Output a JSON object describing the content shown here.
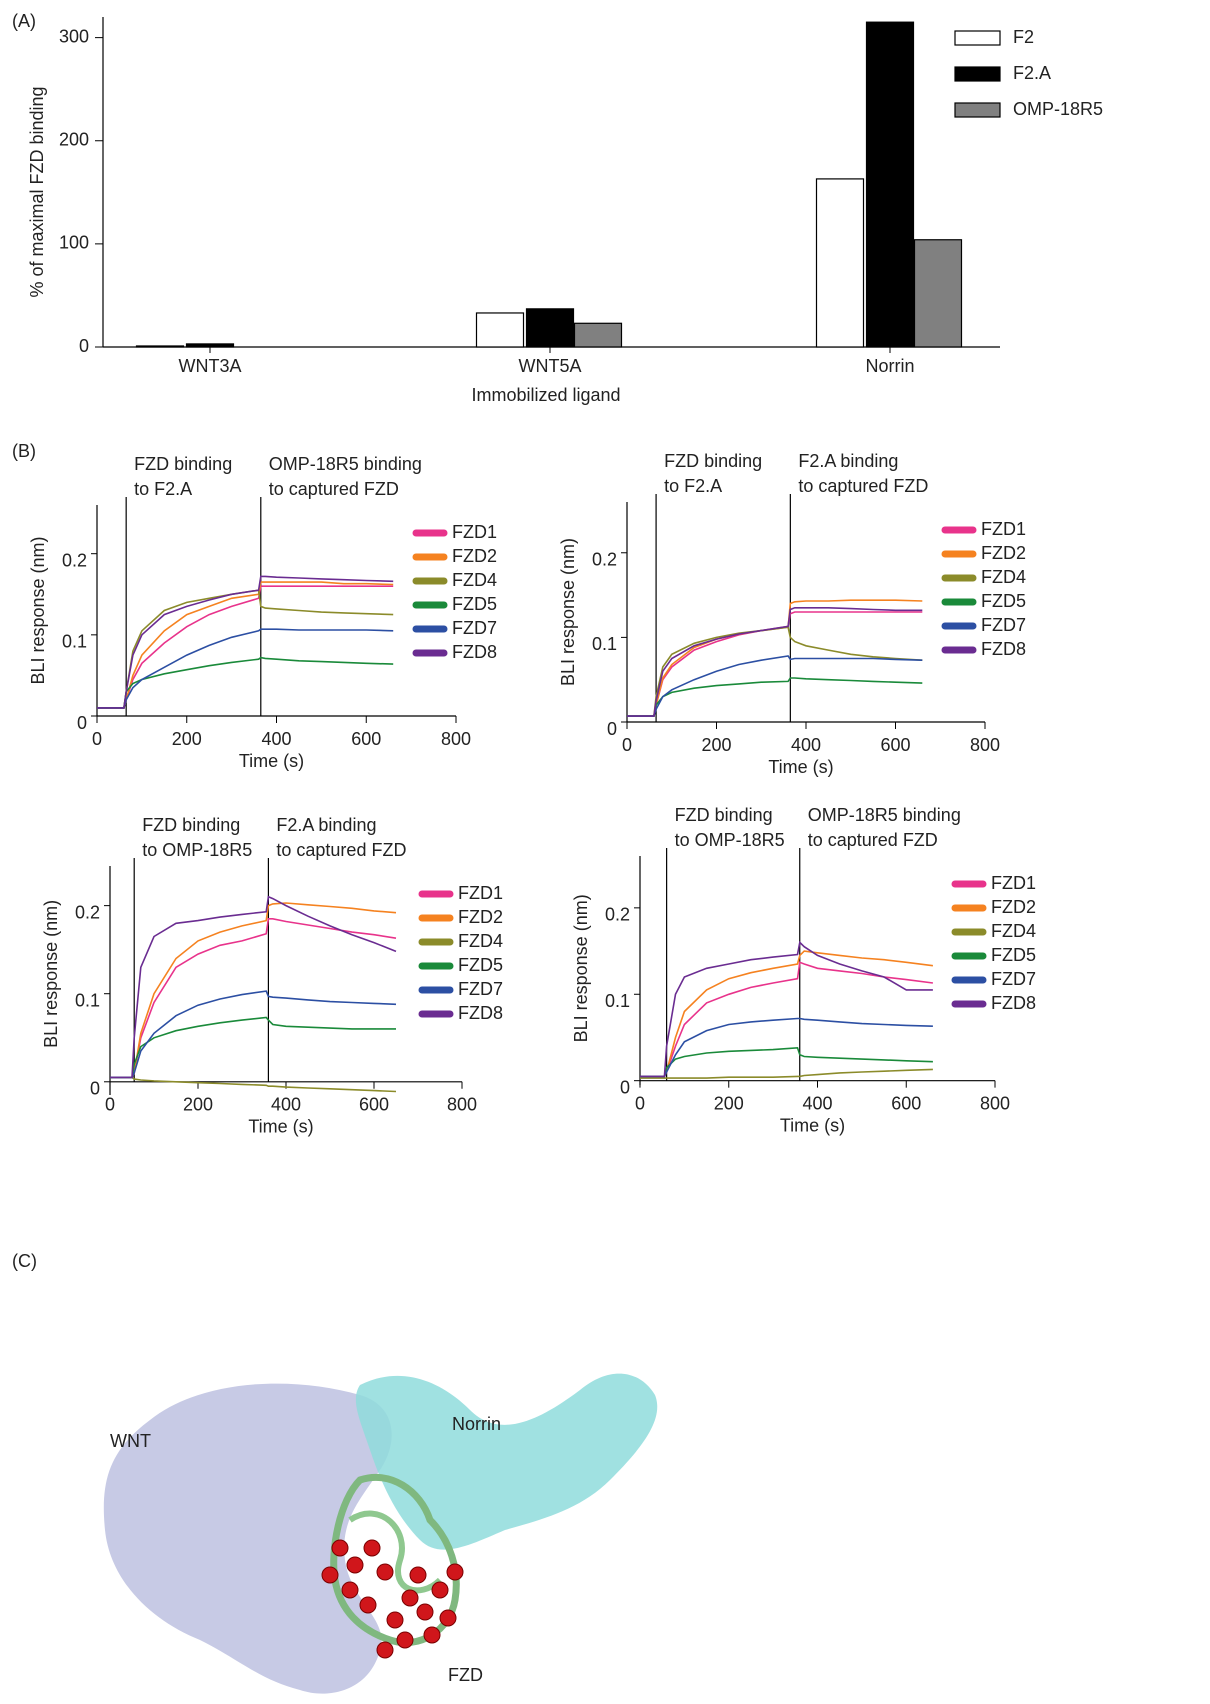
{
  "panels": [
    "(A)",
    "(B)",
    "(C)"
  ],
  "structure_labels": {
    "wnt": "WNT",
    "norrin": "Norrin",
    "fzd": "FZD"
  },
  "chart_data": [
    {
      "type": "bar",
      "xlabel": "Immobilized ligand",
      "ylabel": "% of maximal FZD binding",
      "categories": [
        "WNT3A",
        "WNT5A",
        "Norrin"
      ],
      "series": [
        {
          "name": "F2",
          "color": "#ffffff",
          "values": [
            1,
            33,
            163
          ]
        },
        {
          "name": "F2.A",
          "color": "#000000",
          "values": [
            3,
            37,
            315
          ]
        },
        {
          "name": "OMP-18R5",
          "color": "#808080",
          "values": [
            0,
            23,
            104
          ]
        }
      ],
      "ylim": [
        0,
        320
      ],
      "yticks": [
        0,
        100,
        200,
        300
      ]
    },
    {
      "type": "line",
      "xlabel": "Time (s)",
      "ylabel": "BLI response (nm)",
      "annotations": [
        {
          "x": 65,
          "lines": [
            "FZD binding",
            "to F2.A"
          ]
        },
        {
          "x": 365,
          "lines": [
            "OMP-18R5 binding",
            "to captured FZD"
          ]
        }
      ],
      "x": [
        0,
        60,
        65,
        80,
        100,
        150,
        200,
        250,
        300,
        360,
        365,
        375,
        400,
        450,
        500,
        550,
        600,
        660
      ],
      "series": [
        {
          "name": "FZD1",
          "color": "#e8338b",
          "values": [
            0.01,
            0.01,
            0.02,
            0.045,
            0.065,
            0.09,
            0.11,
            0.125,
            0.135,
            0.145,
            0.16,
            0.16,
            0.16,
            0.16,
            0.16,
            0.16,
            0.16,
            0.16
          ]
        },
        {
          "name": "FZD2",
          "color": "#f58220",
          "values": [
            0.01,
            0.01,
            0.02,
            0.05,
            0.075,
            0.105,
            0.125,
            0.135,
            0.145,
            0.15,
            0.165,
            0.165,
            0.165,
            0.165,
            0.165,
            0.163,
            0.163,
            0.162
          ]
        },
        {
          "name": "FZD4",
          "color": "#8b8b2a",
          "values": [
            0.01,
            0.01,
            0.03,
            0.08,
            0.105,
            0.13,
            0.14,
            0.145,
            0.15,
            0.155,
            0.135,
            0.133,
            0.132,
            0.13,
            0.128,
            0.127,
            0.126,
            0.125
          ]
        },
        {
          "name": "FZD5",
          "color": "#1a8a3a",
          "values": [
            0.01,
            0.01,
            0.03,
            0.04,
            0.045,
            0.052,
            0.057,
            0.062,
            0.066,
            0.07,
            0.072,
            0.071,
            0.07,
            0.068,
            0.067,
            0.066,
            0.065,
            0.064
          ]
        },
        {
          "name": "FZD7",
          "color": "#2c4fa3",
          "values": [
            0.01,
            0.01,
            0.02,
            0.035,
            0.045,
            0.06,
            0.075,
            0.087,
            0.097,
            0.105,
            0.107,
            0.107,
            0.107,
            0.106,
            0.106,
            0.106,
            0.106,
            0.105
          ]
        },
        {
          "name": "FZD8",
          "color": "#6a2c91",
          "values": [
            0.01,
            0.01,
            0.03,
            0.075,
            0.1,
            0.125,
            0.135,
            0.143,
            0.15,
            0.155,
            0.172,
            0.172,
            0.171,
            0.17,
            0.169,
            0.168,
            0.167,
            0.166
          ]
        }
      ],
      "xlim": [
        0,
        800
      ],
      "xticks": [
        0,
        200,
        400,
        600,
        800
      ],
      "ylim": [
        0,
        0.26
      ],
      "yticks": [
        0,
        0.1,
        0.2
      ]
    },
    {
      "type": "line",
      "xlabel": "Time (s)",
      "ylabel": "BLI response (nm)",
      "annotations": [
        {
          "x": 65,
          "lines": [
            "FZD binding",
            "to F2.A"
          ]
        },
        {
          "x": 365,
          "lines": [
            "F2.A binding",
            "to captured FZD"
          ]
        }
      ],
      "x": [
        0,
        60,
        65,
        80,
        100,
        150,
        200,
        250,
        300,
        360,
        365,
        375,
        400,
        450,
        500,
        550,
        600,
        660
      ],
      "series": [
        {
          "name": "FZD1",
          "color": "#e8338b",
          "values": [
            0.007,
            0.007,
            0.02,
            0.05,
            0.065,
            0.085,
            0.095,
            0.103,
            0.108,
            0.113,
            0.128,
            0.13,
            0.13,
            0.13,
            0.13,
            0.13,
            0.13,
            0.13
          ]
        },
        {
          "name": "FZD2",
          "color": "#f58220",
          "values": [
            0.007,
            0.007,
            0.02,
            0.052,
            0.068,
            0.088,
            0.098,
            0.104,
            0.108,
            0.112,
            0.14,
            0.142,
            0.143,
            0.143,
            0.144,
            0.144,
            0.144,
            0.143
          ]
        },
        {
          "name": "FZD4",
          "color": "#8b8b2a",
          "values": [
            0.007,
            0.007,
            0.03,
            0.065,
            0.08,
            0.093,
            0.1,
            0.105,
            0.108,
            0.112,
            0.1,
            0.095,
            0.09,
            0.085,
            0.08,
            0.077,
            0.075,
            0.073
          ]
        },
        {
          "name": "FZD5",
          "color": "#1a8a3a",
          "values": [
            0.007,
            0.007,
            0.02,
            0.03,
            0.035,
            0.04,
            0.043,
            0.045,
            0.047,
            0.048,
            0.052,
            0.052,
            0.051,
            0.05,
            0.049,
            0.048,
            0.047,
            0.046
          ]
        },
        {
          "name": "FZD7",
          "color": "#2c4fa3",
          "values": [
            0.007,
            0.007,
            0.015,
            0.03,
            0.038,
            0.05,
            0.06,
            0.068,
            0.073,
            0.078,
            0.074,
            0.075,
            0.075,
            0.075,
            0.075,
            0.075,
            0.074,
            0.073
          ]
        },
        {
          "name": "FZD8",
          "color": "#6a2c91",
          "values": [
            0.007,
            0.007,
            0.025,
            0.06,
            0.075,
            0.09,
            0.098,
            0.104,
            0.108,
            0.113,
            0.133,
            0.135,
            0.135,
            0.135,
            0.134,
            0.133,
            0.132,
            0.132
          ]
        }
      ],
      "xlim": [
        0,
        800
      ],
      "xticks": [
        0,
        200,
        400,
        600,
        800
      ],
      "ylim": [
        0,
        0.26
      ],
      "yticks": [
        0,
        0.1,
        0.2
      ]
    },
    {
      "type": "line",
      "xlabel": "Time (s)",
      "ylabel": "BLI response (nm)",
      "annotations": [
        {
          "x": 55,
          "lines": [
            "FZD binding",
            "to OMP-18R5"
          ]
        },
        {
          "x": 360,
          "lines": [
            "F2.A binding",
            "to captured FZD"
          ]
        }
      ],
      "x": [
        0,
        50,
        55,
        70,
        100,
        150,
        200,
        250,
        300,
        355,
        360,
        370,
        400,
        450,
        500,
        550,
        600,
        650
      ],
      "series": [
        {
          "name": "FZD1",
          "color": "#e8338b",
          "values": [
            0.005,
            0.005,
            0.01,
            0.05,
            0.09,
            0.13,
            0.145,
            0.155,
            0.16,
            0.168,
            0.185,
            0.185,
            0.182,
            0.178,
            0.174,
            0.17,
            0.167,
            0.163
          ]
        },
        {
          "name": "FZD2",
          "color": "#f58220",
          "values": [
            0.005,
            0.005,
            0.01,
            0.055,
            0.1,
            0.14,
            0.16,
            0.17,
            0.177,
            0.183,
            0.2,
            0.202,
            0.203,
            0.201,
            0.199,
            0.197,
            0.194,
            0.192
          ]
        },
        {
          "name": "FZD4",
          "color": "#8b8b2a",
          "values": [
            0.005,
            0.005,
            0.003,
            0.002,
            0.001,
            0,
            -0.001,
            -0.002,
            -0.003,
            -0.004,
            -0.005,
            -0.005,
            -0.006,
            -0.007,
            -0.008,
            -0.009,
            -0.01,
            -0.011
          ]
        },
        {
          "name": "FZD5",
          "color": "#1a8a3a",
          "values": [
            0.005,
            0.005,
            0.02,
            0.04,
            0.05,
            0.058,
            0.063,
            0.067,
            0.07,
            0.073,
            0.07,
            0.065,
            0.063,
            0.062,
            0.061,
            0.06,
            0.06,
            0.06
          ]
        },
        {
          "name": "FZD7",
          "color": "#2c4fa3",
          "values": [
            0.005,
            0.005,
            0.01,
            0.035,
            0.055,
            0.075,
            0.087,
            0.094,
            0.099,
            0.103,
            0.097,
            0.096,
            0.095,
            0.093,
            0.091,
            0.09,
            0.089,
            0.088
          ]
        },
        {
          "name": "FZD8",
          "color": "#6a2c91",
          "values": [
            0.005,
            0.005,
            0.05,
            0.13,
            0.165,
            0.18,
            0.183,
            0.187,
            0.19,
            0.193,
            0.21,
            0.208,
            0.2,
            0.188,
            0.177,
            0.167,
            0.158,
            0.148
          ]
        }
      ],
      "xlim": [
        0,
        800
      ],
      "xticks": [
        0,
        200,
        400,
        600,
        800
      ],
      "ylim": [
        -0.015,
        0.245
      ],
      "yticks": [
        0,
        0.1,
        0.2
      ]
    },
    {
      "type": "line",
      "xlabel": "Time (s)",
      "ylabel": "BLI response (nm)",
      "annotations": [
        {
          "x": 60,
          "lines": [
            "FZD binding",
            "to OMP-18R5"
          ]
        },
        {
          "x": 360,
          "lines": [
            "OMP-18R5 binding",
            "to captured FZD"
          ]
        }
      ],
      "x": [
        0,
        55,
        60,
        80,
        100,
        150,
        200,
        250,
        300,
        355,
        360,
        370,
        400,
        450,
        500,
        550,
        600,
        660
      ],
      "series": [
        {
          "name": "FZD1",
          "color": "#e8338b",
          "values": [
            0.005,
            0.005,
            0.01,
            0.04,
            0.065,
            0.09,
            0.1,
            0.108,
            0.113,
            0.118,
            0.137,
            0.135,
            0.13,
            0.127,
            0.124,
            0.12,
            0.117,
            0.113
          ]
        },
        {
          "name": "FZD2",
          "color": "#f58220",
          "values": [
            0.005,
            0.005,
            0.01,
            0.05,
            0.08,
            0.105,
            0.118,
            0.125,
            0.13,
            0.135,
            0.145,
            0.15,
            0.148,
            0.145,
            0.142,
            0.14,
            0.137,
            0.133
          ]
        },
        {
          "name": "FZD4",
          "color": "#8b8b2a",
          "values": [
            0.003,
            0.003,
            0.003,
            0.003,
            0.003,
            0.003,
            0.004,
            0.004,
            0.004,
            0.005,
            0.005,
            0.006,
            0.007,
            0.009,
            0.01,
            0.011,
            0.012,
            0.013
          ]
        },
        {
          "name": "FZD5",
          "color": "#1a8a3a",
          "values": [
            0.005,
            0.005,
            0.015,
            0.025,
            0.028,
            0.032,
            0.034,
            0.035,
            0.036,
            0.038,
            0.03,
            0.028,
            0.027,
            0.026,
            0.025,
            0.024,
            0.023,
            0.022
          ]
        },
        {
          "name": "FZD7",
          "color": "#2c4fa3",
          "values": [
            0.005,
            0.005,
            0.01,
            0.03,
            0.045,
            0.058,
            0.065,
            0.068,
            0.07,
            0.072,
            0.072,
            0.071,
            0.07,
            0.068,
            0.066,
            0.065,
            0.064,
            0.063
          ]
        },
        {
          "name": "FZD8",
          "color": "#6a2c91",
          "values": [
            0.005,
            0.005,
            0.04,
            0.1,
            0.12,
            0.13,
            0.135,
            0.14,
            0.143,
            0.146,
            0.16,
            0.155,
            0.145,
            0.135,
            0.127,
            0.12,
            0.105,
            0.105
          ]
        }
      ],
      "xlim": [
        0,
        800
      ],
      "xticks": [
        0,
        200,
        400,
        600,
        800
      ],
      "ylim": [
        -0.005,
        0.26
      ],
      "yticks": [
        0,
        0.1,
        0.2
      ]
    }
  ]
}
